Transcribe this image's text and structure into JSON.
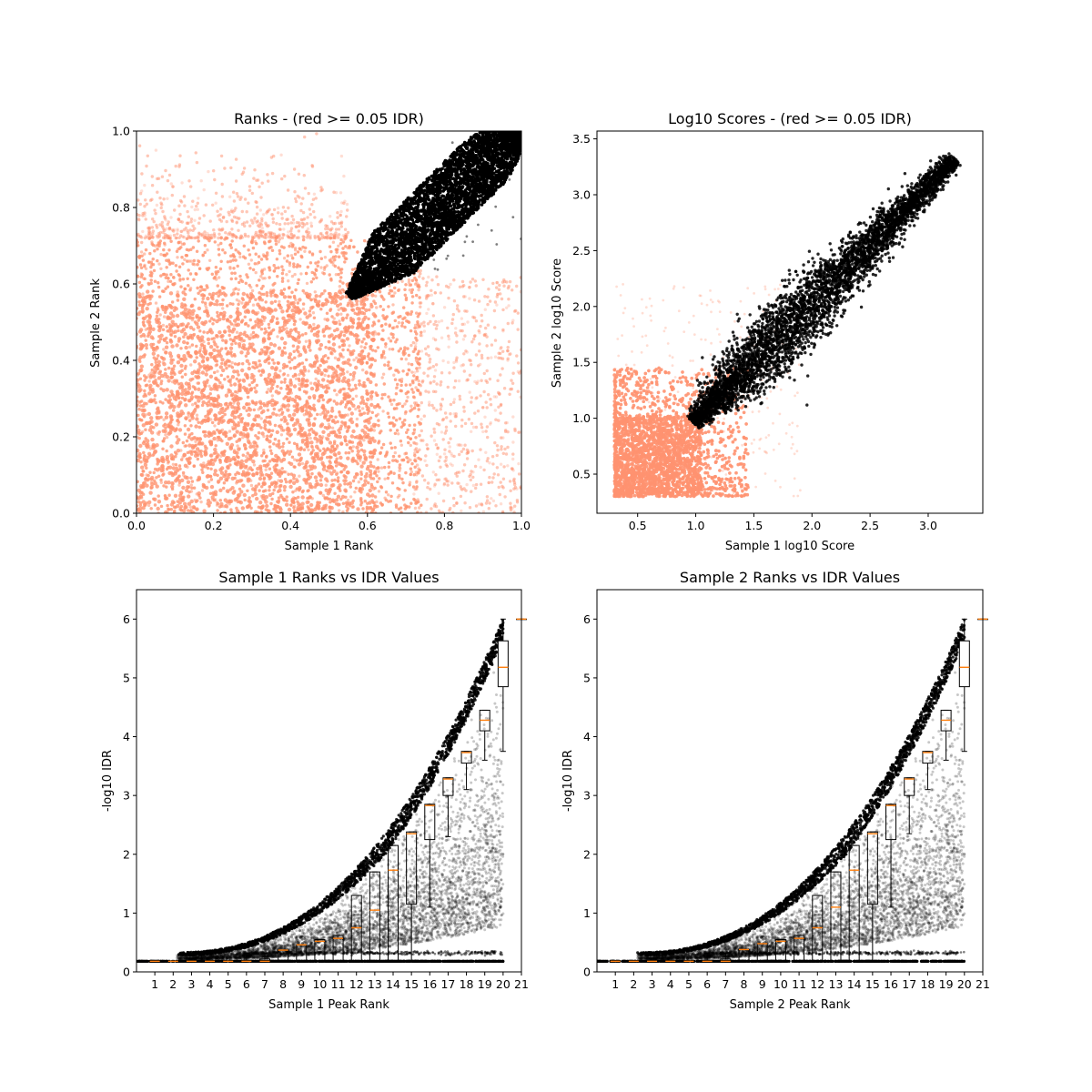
{
  "colors": {
    "fail": "#ff9370",
    "pass": "#000000",
    "median": "#ff7f0e",
    "box": "#000000"
  },
  "chart_data": [
    {
      "id": "ranks",
      "type": "scatter",
      "title": "Ranks - (red >= 0.05 IDR)",
      "xlabel": "Sample 1 Rank",
      "ylabel": "Sample 2 Rank",
      "xlim": [
        0,
        1
      ],
      "ylim": [
        0,
        1
      ],
      "xticks": [
        0.0,
        0.2,
        0.4,
        0.6,
        0.8,
        1.0
      ],
      "yticks": [
        0.0,
        0.2,
        0.4,
        0.6,
        0.8,
        1.0
      ],
      "xtick_labels": [
        "0.0",
        "0.2",
        "0.4",
        "0.6",
        "0.8",
        "1.0"
      ],
      "ytick_labels": [
        "0.0",
        "0.2",
        "0.4",
        "0.6",
        "0.8",
        "1.0"
      ],
      "grid": false,
      "series": [
        {
          "color": "#ff9370",
          "region": "dense cloud over [0, 0.75] x [0, 0.75], sparse to 1.0"
        },
        {
          "color": "#000000",
          "region": "elongated band from (0.55, 0.55) to (1.0, 1.0)"
        }
      ]
    },
    {
      "id": "scores",
      "type": "scatter",
      "title": "Log10 Scores - (red >= 0.05 IDR)",
      "xlabel": "Sample 1 log10 Score",
      "ylabel": "Sample 2 log10 Score",
      "xlim": [
        0.15,
        3.47
      ],
      "ylim": [
        0.15,
        3.57
      ],
      "xticks": [
        0.5,
        1.0,
        1.5,
        2.0,
        2.5,
        3.0
      ],
      "yticks": [
        0.5,
        1.0,
        1.5,
        2.0,
        2.5,
        3.0,
        3.5
      ],
      "xtick_labels": [
        "0.5",
        "1.0",
        "1.5",
        "2.0",
        "2.5",
        "3.0"
      ],
      "ytick_labels": [
        "0.5",
        "1.0",
        "1.5",
        "2.0",
        "2.5",
        "3.0",
        "3.5"
      ],
      "grid": false,
      "series": [
        {
          "color": "#ff9370",
          "region": "cloud over [0.3, 1.5] x [0.3, 1.5]"
        },
        {
          "color": "#000000",
          "region": "diagonal band from (0.95, 0.95) to (3.2, 3.4)"
        }
      ]
    },
    {
      "id": "idr1",
      "type": "box",
      "title": "Sample 1 Ranks vs IDR Values",
      "xlabel": "Sample 1 Peak Rank",
      "ylabel": "-log10 IDR",
      "xlim": [
        0,
        21
      ],
      "ylim": [
        0,
        6.5
      ],
      "xticks": [
        1,
        2,
        3,
        4,
        5,
        6,
        7,
        8,
        9,
        10,
        11,
        12,
        13,
        14,
        15,
        16,
        17,
        18,
        19,
        20,
        21
      ],
      "yticks": [
        0,
        1,
        2,
        3,
        4,
        5,
        6
      ],
      "xtick_labels": [
        "1",
        "2",
        "3",
        "4",
        "5",
        "6",
        "7",
        "8",
        "9",
        "10",
        "11",
        "12",
        "13",
        "14",
        "15",
        "16",
        "17",
        "18",
        "19",
        "20",
        "21"
      ],
      "ytick_labels": [
        "0",
        "1",
        "2",
        "3",
        "4",
        "5",
        "6"
      ],
      "grid": false,
      "boxes": [
        {
          "pos": 1,
          "lo": 0.18,
          "q1": 0.18,
          "med": 0.18,
          "q3": 0.18,
          "hi": 0.18
        },
        {
          "pos": 2,
          "lo": 0.18,
          "q1": 0.18,
          "med": 0.18,
          "q3": 0.18,
          "hi": 0.18
        },
        {
          "pos": 3,
          "lo": 0.18,
          "q1": 0.18,
          "med": 0.18,
          "q3": 0.18,
          "hi": 0.18
        },
        {
          "pos": 4,
          "lo": 0.18,
          "q1": 0.18,
          "med": 0.18,
          "q3": 0.18,
          "hi": 0.18
        },
        {
          "pos": 5,
          "lo": 0.18,
          "q1": 0.18,
          "med": 0.18,
          "q3": 0.18,
          "hi": 0.18
        },
        {
          "pos": 6,
          "lo": 0.18,
          "q1": 0.18,
          "med": 0.18,
          "q3": 0.2,
          "hi": 0.32
        },
        {
          "pos": 7,
          "lo": 0.18,
          "q1": 0.18,
          "med": 0.18,
          "q3": 0.22,
          "hi": 0.32
        },
        {
          "pos": 8,
          "lo": 0.18,
          "q1": 0.18,
          "med": 0.37,
          "q3": 0.37,
          "hi": 0.37
        },
        {
          "pos": 9,
          "lo": 0.18,
          "q1": 0.18,
          "med": 0.46,
          "q3": 0.46,
          "hi": 0.46
        },
        {
          "pos": 10,
          "lo": 0.18,
          "q1": 0.18,
          "med": 0.52,
          "q3": 0.55,
          "hi": 0.55
        },
        {
          "pos": 11,
          "lo": 0.18,
          "q1": 0.18,
          "med": 0.57,
          "q3": 0.62,
          "hi": 0.62
        },
        {
          "pos": 12,
          "lo": 0.18,
          "q1": 0.18,
          "med": 0.75,
          "q3": 1.3,
          "hi": 1.3
        },
        {
          "pos": 13,
          "lo": 0.18,
          "q1": 0.18,
          "med": 1.05,
          "q3": 1.7,
          "hi": 1.7
        },
        {
          "pos": 14,
          "lo": 0.18,
          "q1": 0.18,
          "med": 1.73,
          "q3": 2.15,
          "hi": 2.15
        },
        {
          "pos": 15,
          "lo": 0.18,
          "q1": 1.15,
          "med": 2.35,
          "q3": 2.38,
          "hi": 2.38
        },
        {
          "pos": 16,
          "lo": 1.1,
          "q1": 2.25,
          "med": 2.83,
          "q3": 2.85,
          "hi": 2.85
        },
        {
          "pos": 17,
          "lo": 2.3,
          "q1": 3.0,
          "med": 3.28,
          "q3": 3.3,
          "hi": 3.3
        },
        {
          "pos": 18,
          "lo": 3.1,
          "q1": 3.55,
          "med": 3.73,
          "q3": 3.75,
          "hi": 3.75
        },
        {
          "pos": 19,
          "lo": 3.6,
          "q1": 4.1,
          "med": 4.28,
          "q3": 4.45,
          "hi": 4.45
        },
        {
          "pos": 20,
          "lo": 3.75,
          "q1": 4.85,
          "med": 5.18,
          "q3": 5.63,
          "hi": 6.0
        },
        {
          "pos": 21,
          "lo": 6.0,
          "q1": 6.0,
          "med": 6.0,
          "q3": 6.0,
          "hi": 6.0
        }
      ]
    },
    {
      "id": "idr2",
      "type": "box",
      "title": "Sample 2 Ranks vs IDR Values",
      "xlabel": "Sample 2 Peak Rank",
      "ylabel": "-log10 IDR",
      "xlim": [
        0,
        21
      ],
      "ylim": [
        0,
        6.5
      ],
      "xticks": [
        1,
        2,
        3,
        4,
        5,
        6,
        7,
        8,
        9,
        10,
        11,
        12,
        13,
        14,
        15,
        16,
        17,
        18,
        19,
        20,
        21
      ],
      "yticks": [
        0,
        1,
        2,
        3,
        4,
        5,
        6
      ],
      "xtick_labels": [
        "1",
        "2",
        "3",
        "4",
        "5",
        "6",
        "7",
        "8",
        "9",
        "10",
        "11",
        "12",
        "13",
        "14",
        "15",
        "16",
        "17",
        "18",
        "19",
        "20",
        "21"
      ],
      "ytick_labels": [
        "0",
        "1",
        "2",
        "3",
        "4",
        "5",
        "6"
      ],
      "grid": false,
      "boxes": [
        {
          "pos": 1,
          "lo": 0.18,
          "q1": 0.18,
          "med": 0.18,
          "q3": 0.18,
          "hi": 0.18
        },
        {
          "pos": 2,
          "lo": 0.18,
          "q1": 0.18,
          "med": 0.18,
          "q3": 0.18,
          "hi": 0.18
        },
        {
          "pos": 3,
          "lo": 0.18,
          "q1": 0.18,
          "med": 0.18,
          "q3": 0.18,
          "hi": 0.18
        },
        {
          "pos": 4,
          "lo": 0.18,
          "q1": 0.18,
          "med": 0.18,
          "q3": 0.18,
          "hi": 0.18
        },
        {
          "pos": 5,
          "lo": 0.18,
          "q1": 0.18,
          "med": 0.18,
          "q3": 0.18,
          "hi": 0.18
        },
        {
          "pos": 6,
          "lo": 0.18,
          "q1": 0.18,
          "med": 0.18,
          "q3": 0.2,
          "hi": 0.32
        },
        {
          "pos": 7,
          "lo": 0.18,
          "q1": 0.18,
          "med": 0.18,
          "q3": 0.22,
          "hi": 0.32
        },
        {
          "pos": 8,
          "lo": 0.18,
          "q1": 0.18,
          "med": 0.38,
          "q3": 0.38,
          "hi": 0.38
        },
        {
          "pos": 9,
          "lo": 0.18,
          "q1": 0.18,
          "med": 0.48,
          "q3": 0.48,
          "hi": 0.48
        },
        {
          "pos": 10,
          "lo": 0.18,
          "q1": 0.18,
          "med": 0.52,
          "q3": 0.55,
          "hi": 0.55
        },
        {
          "pos": 11,
          "lo": 0.18,
          "q1": 0.18,
          "med": 0.57,
          "q3": 0.62,
          "hi": 0.62
        },
        {
          "pos": 12,
          "lo": 0.18,
          "q1": 0.18,
          "med": 0.75,
          "q3": 1.3,
          "hi": 1.3
        },
        {
          "pos": 13,
          "lo": 0.18,
          "q1": 0.18,
          "med": 1.1,
          "q3": 1.7,
          "hi": 1.7
        },
        {
          "pos": 14,
          "lo": 0.18,
          "q1": 0.18,
          "med": 1.73,
          "q3": 2.15,
          "hi": 2.15
        },
        {
          "pos": 15,
          "lo": 0.18,
          "q1": 1.15,
          "med": 2.35,
          "q3": 2.38,
          "hi": 2.38
        },
        {
          "pos": 16,
          "lo": 1.1,
          "q1": 2.25,
          "med": 2.83,
          "q3": 2.85,
          "hi": 2.85
        },
        {
          "pos": 17,
          "lo": 2.35,
          "q1": 3.0,
          "med": 3.28,
          "q3": 3.3,
          "hi": 3.3
        },
        {
          "pos": 18,
          "lo": 3.1,
          "q1": 3.55,
          "med": 3.73,
          "q3": 3.75,
          "hi": 3.75
        },
        {
          "pos": 19,
          "lo": 3.6,
          "q1": 4.1,
          "med": 4.28,
          "q3": 4.45,
          "hi": 4.45
        },
        {
          "pos": 20,
          "lo": 3.75,
          "q1": 4.85,
          "med": 5.18,
          "q3": 5.63,
          "hi": 6.0
        },
        {
          "pos": 21,
          "lo": 6.0,
          "q1": 6.0,
          "med": 6.0,
          "q3": 6.0,
          "hi": 6.0
        }
      ]
    }
  ]
}
